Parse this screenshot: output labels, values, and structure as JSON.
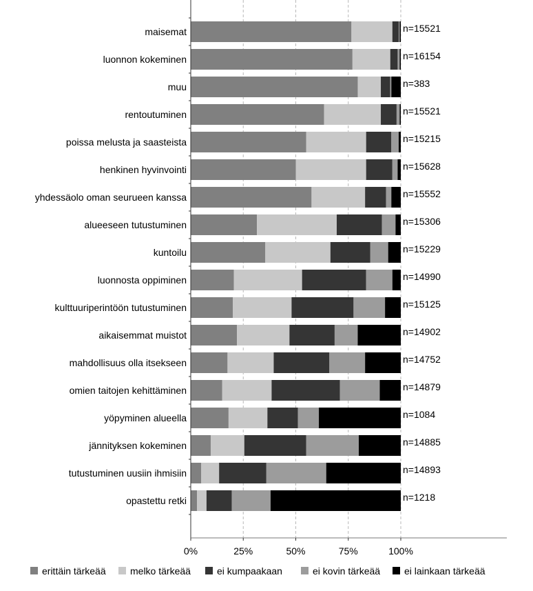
{
  "chart_data": {
    "type": "bar",
    "orientation": "horizontal",
    "stacked": "percent",
    "categories": [
      "maisemat",
      "luonnon kokeminen",
      "muu",
      "rentoutuminen",
      "poissa melusta ja saasteista",
      "henkinen hyvinvointi",
      "yhdessäolo oman seurueen kanssa",
      "alueeseen tutustuminen",
      "kuntoilu",
      "luonnosta oppiminen",
      "kulttuuriperintöön tutustuminen",
      "aikaisemmat muistot",
      "mahdollisuus olla itsekseen",
      "omien taitojen kehittäminen",
      "yöpyminen alueella",
      "jännityksen kokeminen",
      "tutustuminen uusiin ihmisiin",
      "opastettu retki"
    ],
    "n_labels": [
      "n=15521",
      "n=16154",
      "n=383",
      "n=15521",
      "n=15215",
      "n=15628",
      "n=15552",
      "n=15306",
      "n=15229",
      "n=14990",
      "n=15125",
      "n=14902",
      "n=14752",
      "n=14879",
      "n=1084",
      "n=14885",
      "n=14893",
      "n=1218"
    ],
    "series": [
      {
        "name": "erittäin tärkeää",
        "color": "#808080",
        "values": [
          76.5,
          77,
          79.5,
          63.5,
          55,
          50,
          57.5,
          31.5,
          35.5,
          20.5,
          20,
          22,
          17.5,
          15,
          18,
          9.5,
          5,
          3
        ]
      },
      {
        "name": "melko tärkeää",
        "color": "#c8c8c8",
        "values": [
          19.5,
          18,
          11,
          27,
          28.5,
          33.5,
          25.5,
          38,
          31,
          32.5,
          28,
          25,
          22,
          23.5,
          18.5,
          16,
          8.5,
          4.5
        ]
      },
      {
        "name": "ei kumpaakaan",
        "color": "#353535",
        "values": [
          3,
          3.5,
          4.5,
          7.5,
          12,
          12.5,
          10,
          21.5,
          19,
          30.5,
          29.5,
          21.5,
          26.5,
          32.5,
          14.5,
          29.5,
          22.5,
          12
        ]
      },
      {
        "name": "ei kovin tärkeää",
        "color": "#9c9c9c",
        "values": [
          0.5,
          1,
          0.5,
          1.5,
          3.5,
          2.5,
          2.5,
          6.5,
          8.5,
          12.5,
          15,
          11,
          17,
          19,
          10,
          25,
          28.5,
          18.5
        ]
      },
      {
        "name": "ei lainkaan tärkeää",
        "color": "#000000",
        "values": [
          0.5,
          0.5,
          4.5,
          0.5,
          1,
          1.5,
          4.5,
          2.5,
          6,
          4,
          7.5,
          20.5,
          17,
          10,
          39,
          20,
          35.5,
          62
        ]
      }
    ],
    "x_ticks": [
      "0%",
      "25%",
      "50%",
      "75%",
      "100%"
    ],
    "xlim": [
      0,
      100
    ],
    "grid": "vertical dashed",
    "legend_position": "bottom"
  }
}
